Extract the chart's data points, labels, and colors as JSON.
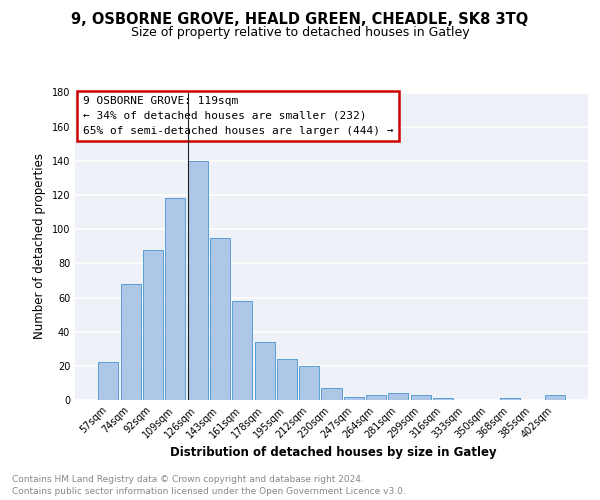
{
  "title1": "9, OSBORNE GROVE, HEALD GREEN, CHEADLE, SK8 3TQ",
  "title2": "Size of property relative to detached houses in Gatley",
  "xlabel": "Distribution of detached houses by size in Gatley",
  "ylabel": "Number of detached properties",
  "categories": [
    "57sqm",
    "74sqm",
    "92sqm",
    "109sqm",
    "126sqm",
    "143sqm",
    "161sqm",
    "178sqm",
    "195sqm",
    "212sqm",
    "230sqm",
    "247sqm",
    "264sqm",
    "281sqm",
    "299sqm",
    "316sqm",
    "333sqm",
    "350sqm",
    "368sqm",
    "385sqm",
    "402sqm"
  ],
  "values": [
    22,
    68,
    88,
    118,
    140,
    95,
    58,
    34,
    24,
    20,
    7,
    2,
    3,
    4,
    3,
    1,
    0,
    0,
    1,
    0,
    3
  ],
  "bar_color": "#aec6e8",
  "bar_edge_color": "#5a9fd4",
  "ylim": [
    0,
    180
  ],
  "yticks": [
    0,
    20,
    40,
    60,
    80,
    100,
    120,
    140,
    160,
    180
  ],
  "annotation_line1": "9 OSBORNE GROVE: 119sqm",
  "annotation_line2": "← 34% of detached houses are smaller (232)",
  "annotation_line3": "65% of semi-detached houses are larger (444) →",
  "box_color": "#cc0000",
  "footer1": "Contains HM Land Registry data © Crown copyright and database right 2024.",
  "footer2": "Contains public sector information licensed under the Open Government Licence v3.0.",
  "bg_color": "#eef2f8",
  "grid_color": "#ffffff",
  "title_fontsize": 10.5,
  "subtitle_fontsize": 9,
  "axis_label_fontsize": 8.5,
  "tick_fontsize": 7,
  "annotation_fontsize": 8,
  "footer_fontsize": 6.5
}
